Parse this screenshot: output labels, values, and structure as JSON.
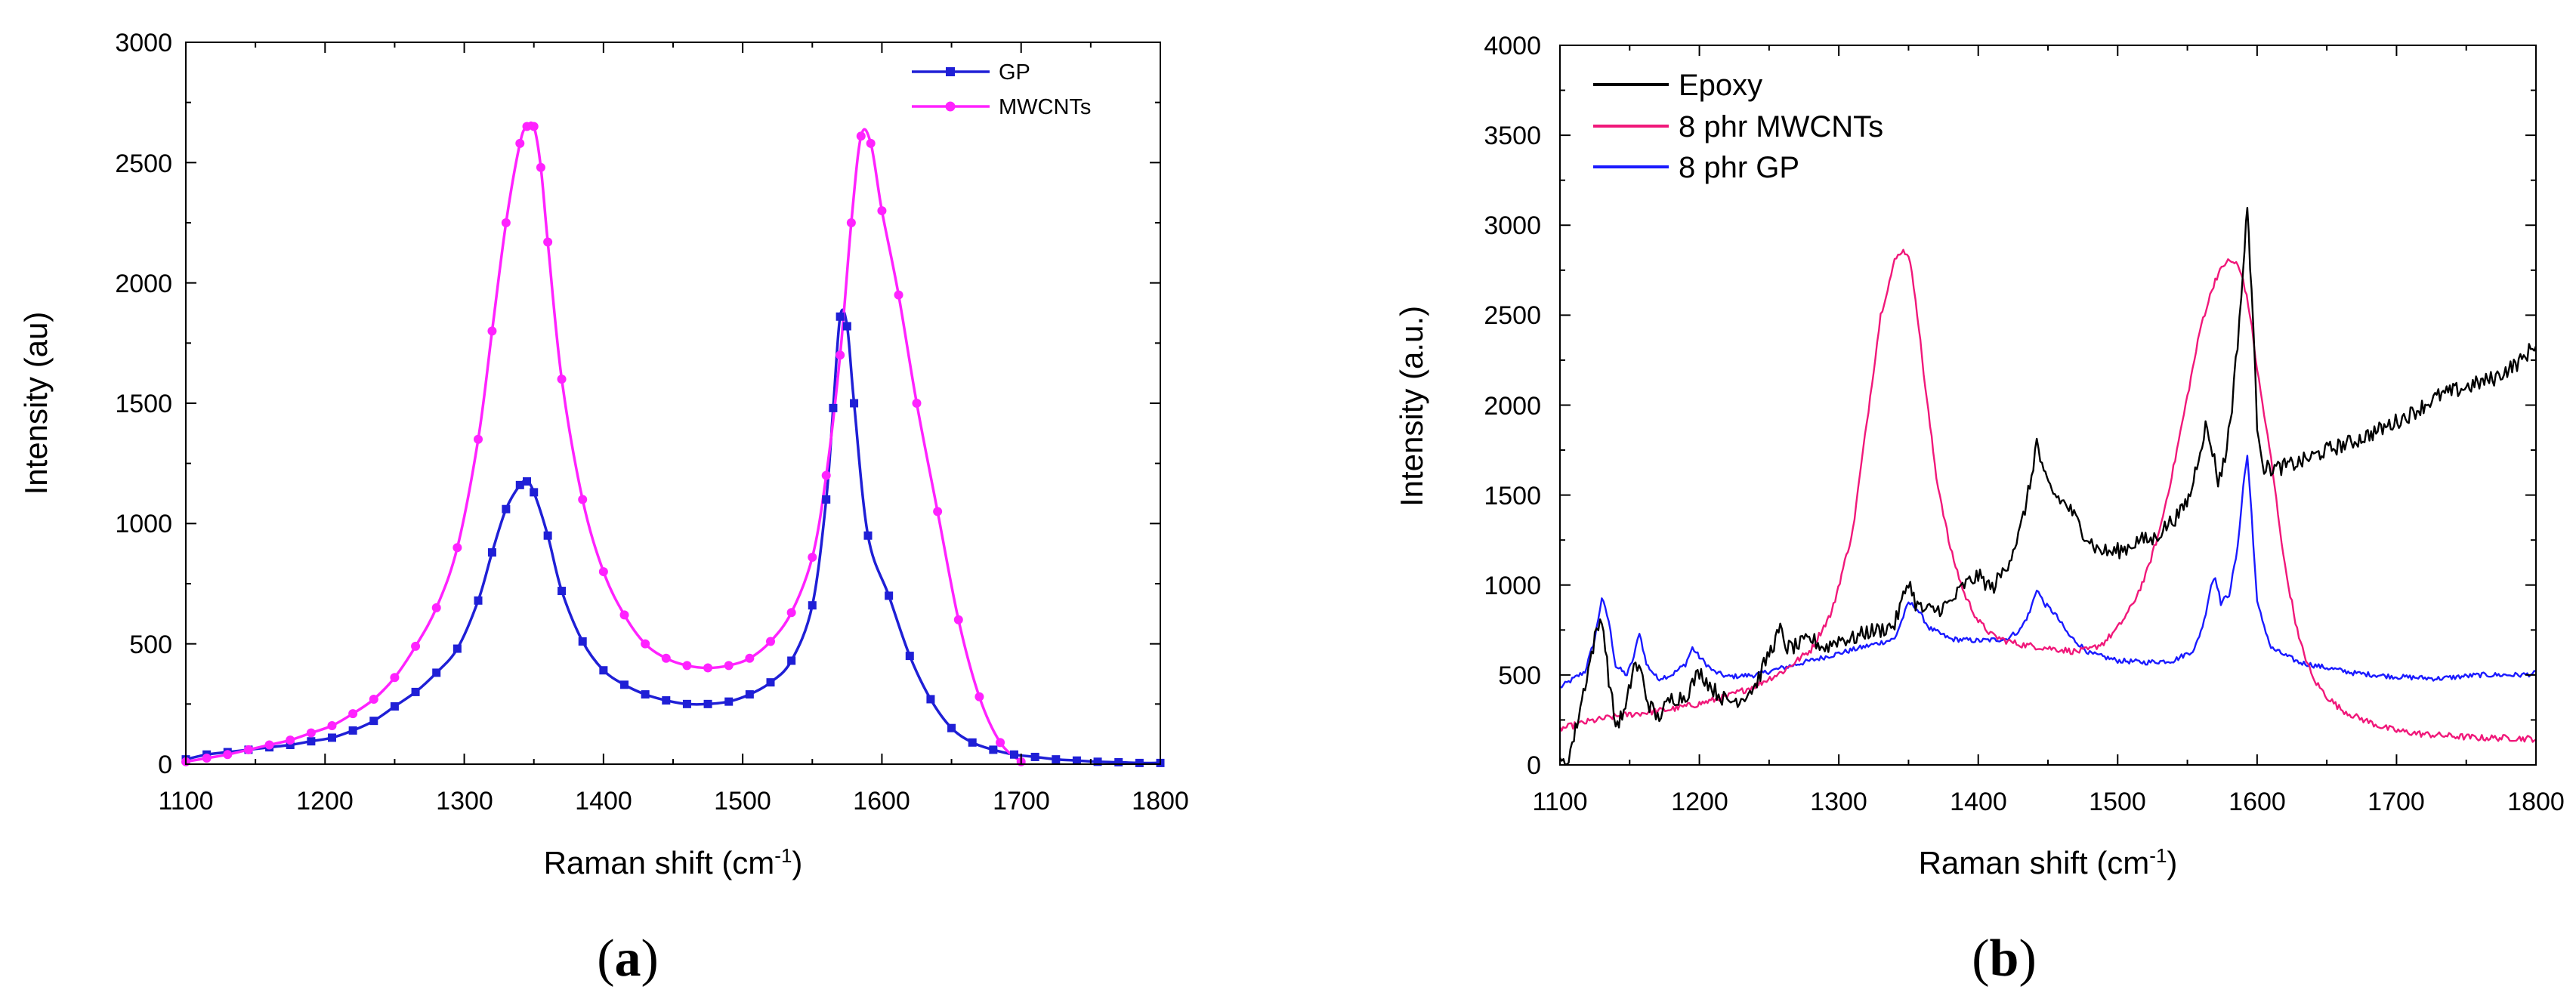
{
  "chart_data": [
    {
      "panel_label": "(a)",
      "panel_paren_open": "(",
      "panel_letter": "a",
      "panel_paren_close": ")",
      "type": "line",
      "title": "",
      "xlabel": "Raman shift (cm",
      "xlabel_sup": "-1",
      "xlabel_close": ")",
      "ylabel": "Intensity (au)",
      "xlim": [
        1100,
        1800
      ],
      "ylim": [
        0,
        3000
      ],
      "xticks": [
        1100,
        1200,
        1300,
        1400,
        1500,
        1600,
        1700,
        1800
      ],
      "yticks": [
        0,
        500,
        1000,
        1500,
        2000,
        2500,
        3000
      ],
      "xtick_labels": [
        "1100",
        "1200",
        "1300",
        "1400",
        "1500",
        "1600",
        "1700",
        "1800"
      ],
      "ytick_labels": [
        "0",
        "500",
        "1000",
        "1500",
        "2000",
        "2500",
        "3000"
      ],
      "legend_position": "top-right",
      "grid": false,
      "series": [
        {
          "name": "GP",
          "color": "#1f1fd6",
          "marker": "square",
          "x": [
            1100,
            1115,
            1130,
            1145,
            1160,
            1175,
            1190,
            1205,
            1220,
            1235,
            1250,
            1265,
            1280,
            1295,
            1310,
            1320,
            1330,
            1340,
            1345,
            1350,
            1360,
            1370,
            1385,
            1400,
            1415,
            1430,
            1445,
            1460,
            1475,
            1490,
            1505,
            1520,
            1535,
            1550,
            1560,
            1565,
            1570,
            1575,
            1580,
            1590,
            1605,
            1620,
            1635,
            1650,
            1665,
            1680,
            1695,
            1710,
            1725,
            1740,
            1755,
            1770,
            1785,
            1800
          ],
          "y": [
            20,
            40,
            50,
            60,
            70,
            80,
            95,
            110,
            140,
            180,
            240,
            300,
            380,
            480,
            680,
            880,
            1060,
            1160,
            1175,
            1130,
            950,
            720,
            510,
            390,
            330,
            290,
            265,
            250,
            250,
            260,
            290,
            340,
            430,
            660,
            1100,
            1480,
            1860,
            1820,
            1500,
            950,
            700,
            450,
            270,
            150,
            90,
            60,
            40,
            30,
            20,
            15,
            10,
            8,
            5,
            5
          ]
        },
        {
          "name": "MWCNTs",
          "color": "#ff22ff",
          "marker": "circle",
          "x": [
            1100,
            1115,
            1130,
            1145,
            1160,
            1175,
            1190,
            1205,
            1220,
            1235,
            1250,
            1265,
            1280,
            1295,
            1310,
            1320,
            1330,
            1340,
            1345,
            1350,
            1355,
            1360,
            1370,
            1385,
            1400,
            1415,
            1430,
            1445,
            1460,
            1475,
            1490,
            1505,
            1520,
            1535,
            1550,
            1560,
            1570,
            1578,
            1585,
            1592,
            1600,
            1612,
            1625,
            1640,
            1655,
            1670,
            1685,
            1700
          ],
          "y": [
            10,
            25,
            40,
            60,
            80,
            100,
            130,
            160,
            210,
            270,
            360,
            490,
            650,
            900,
            1350,
            1800,
            2250,
            2580,
            2650,
            2650,
            2480,
            2170,
            1600,
            1100,
            800,
            620,
            500,
            440,
            410,
            400,
            410,
            440,
            510,
            630,
            860,
            1200,
            1700,
            2250,
            2610,
            2580,
            2300,
            1950,
            1500,
            1050,
            600,
            280,
            90,
            10
          ]
        }
      ]
    },
    {
      "panel_label": "(b)",
      "panel_paren_open": "(",
      "panel_letter": "b",
      "panel_paren_close": ")",
      "type": "line",
      "title": "",
      "xlabel": "Raman shift (cm",
      "xlabel_sup": "-1",
      "xlabel_close": ")",
      "ylabel": "Intensity (a.u.)",
      "xlim": [
        1100,
        1800
      ],
      "ylim": [
        0,
        4000
      ],
      "xticks": [
        1100,
        1200,
        1300,
        1400,
        1500,
        1600,
        1700,
        1800
      ],
      "yticks": [
        0,
        500,
        1000,
        1500,
        2000,
        2500,
        3000,
        3500,
        4000
      ],
      "xtick_labels": [
        "1100",
        "1200",
        "1300",
        "1400",
        "1500",
        "1600",
        "1700",
        "1800"
      ],
      "ytick_labels": [
        "0",
        "500",
        "1000",
        "1500",
        "2000",
        "2500",
        "3000",
        "3500",
        "4000"
      ],
      "legend_position": "top-left",
      "grid": false,
      "series": [
        {
          "name": "Epoxy",
          "color": "#000000",
          "x": [
            1100,
            1105,
            1110,
            1118,
            1125,
            1130,
            1135,
            1140,
            1147,
            1153,
            1158,
            1163,
            1170,
            1180,
            1190,
            1200,
            1210,
            1220,
            1230,
            1240,
            1250,
            1258,
            1263,
            1270,
            1280,
            1290,
            1300,
            1310,
            1320,
            1330,
            1340,
            1345,
            1350,
            1355,
            1360,
            1370,
            1380,
            1390,
            1400,
            1410,
            1420,
            1430,
            1437,
            1442,
            1447,
            1455,
            1465,
            1475,
            1485,
            1495,
            1505,
            1515,
            1525,
            1535,
            1545,
            1552,
            1558,
            1563,
            1568,
            1572,
            1577,
            1582,
            1586,
            1590,
            1593,
            1596,
            1600,
            1605,
            1615,
            1630,
            1650,
            1670,
            1690,
            1710,
            1730,
            1750,
            1770,
            1790,
            1800
          ],
          "y": [
            0,
            20,
            150,
            450,
            700,
            830,
            480,
            220,
            300,
            560,
            520,
            350,
            260,
            370,
            380,
            520,
            420,
            350,
            370,
            440,
            620,
            750,
            650,
            660,
            700,
            650,
            700,
            700,
            740,
            750,
            780,
            900,
            1030,
            900,
            860,
            860,
            900,
            1000,
            1050,
            980,
            1100,
            1300,
            1550,
            1800,
            1600,
            1500,
            1430,
            1300,
            1200,
            1180,
            1200,
            1250,
            1250,
            1330,
            1400,
            1500,
            1720,
            1880,
            1750,
            1580,
            1700,
            2000,
            2350,
            2750,
            3100,
            2650,
            1900,
            1650,
            1650,
            1680,
            1750,
            1800,
            1870,
            1950,
            2050,
            2100,
            2150,
            2250,
            2350
          ]
        },
        {
          "name": "8 phr MWCNTs",
          "color": "#f0187a",
          "x": [
            1100,
            1120,
            1140,
            1160,
            1180,
            1200,
            1220,
            1240,
            1260,
            1280,
            1295,
            1310,
            1320,
            1330,
            1340,
            1345,
            1350,
            1355,
            1362,
            1370,
            1380,
            1390,
            1400,
            1410,
            1420,
            1430,
            1440,
            1450,
            1460,
            1470,
            1480,
            1490,
            1500,
            1510,
            1520,
            1530,
            1540,
            1550,
            1560,
            1570,
            1578,
            1585,
            1590,
            1595,
            1600,
            1610,
            1620,
            1630,
            1640,
            1650,
            1660,
            1670,
            1680,
            1690,
            1700,
            1720,
            1740,
            1760,
            1780,
            1800
          ],
          "y": [
            200,
            240,
            270,
            290,
            310,
            340,
            380,
            440,
            520,
            640,
            850,
            1300,
            1900,
            2500,
            2800,
            2860,
            2840,
            2600,
            2100,
            1600,
            1200,
            950,
            800,
            720,
            690,
            670,
            660,
            650,
            640,
            630,
            640,
            680,
            760,
            880,
            1050,
            1300,
            1650,
            2050,
            2450,
            2700,
            2800,
            2790,
            2700,
            2500,
            2200,
            1700,
            1100,
            700,
            480,
            380,
            310,
            270,
            240,
            210,
            190,
            170,
            160,
            150,
            150,
            145
          ]
        },
        {
          "name": "8 phr GP",
          "color": "#1a1aff",
          "x": [
            1100,
            1110,
            1118,
            1125,
            1130,
            1135,
            1140,
            1148,
            1153,
            1157,
            1162,
            1170,
            1180,
            1190,
            1195,
            1200,
            1210,
            1220,
            1240,
            1260,
            1280,
            1300,
            1320,
            1340,
            1350,
            1355,
            1365,
            1380,
            1400,
            1420,
            1430,
            1437,
            1442,
            1447,
            1455,
            1465,
            1480,
            1500,
            1520,
            1540,
            1555,
            1562,
            1567,
            1570,
            1574,
            1580,
            1586,
            1590,
            1593,
            1596,
            1600,
            1610,
            1630,
            1650,
            1670,
            1700,
            1730,
            1760,
            1790,
            1800
          ],
          "y": [
            430,
            480,
            520,
            700,
            930,
            800,
            550,
            500,
            600,
            740,
            560,
            480,
            500,
            560,
            650,
            600,
            520,
            490,
            500,
            540,
            580,
            620,
            660,
            700,
            900,
            880,
            760,
            700,
            690,
            700,
            750,
            850,
            980,
            900,
            840,
            720,
            620,
            580,
            570,
            580,
            640,
            800,
            1000,
            1050,
            900,
            950,
            1200,
            1550,
            1720,
            1400,
            900,
            650,
            570,
            540,
            510,
            490,
            480,
            500,
            500,
            510
          ]
        }
      ]
    }
  ]
}
